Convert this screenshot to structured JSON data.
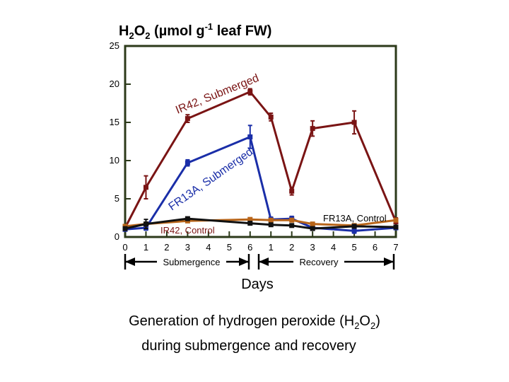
{
  "chart_data": {
    "type": "line",
    "title_main": "H",
    "title_sub2a": "2",
    "title_o": "O",
    "title_sub2b": "2",
    "title_mid": " (",
    "title_mu": "µ",
    "title_rest": "mol g",
    "title_sup": "-1",
    "title_end": " leaf FW)",
    "ylim": [
      0,
      25
    ],
    "y_ticks": [
      "0",
      "5",
      "10",
      "15",
      "20",
      "25"
    ],
    "y_tick_values": [
      0,
      5,
      10,
      15,
      20,
      25
    ],
    "x_ticks": [
      "0",
      "1",
      "2",
      "3",
      "4",
      "5",
      "6",
      "1",
      "2",
      "3",
      "4",
      "5",
      "6",
      "7"
    ],
    "x_tick_positions": [
      0,
      1,
      2,
      3,
      4,
      5,
      6,
      7,
      8,
      9,
      10,
      11,
      12,
      13
    ],
    "xlim": [
      0,
      13
    ],
    "xlabel": "Days",
    "phase_submergence": "Submergence",
    "phase_recovery": "Recovery",
    "series": [
      {
        "label": "IR42, Submerged",
        "color": "#7a1414",
        "x": [
          0,
          1,
          3,
          6,
          7,
          8,
          9,
          11,
          13
        ],
        "y": [
          1.2,
          6.5,
          15.5,
          19,
          15.7,
          6,
          14.2,
          15,
          2
        ],
        "err": [
          0.3,
          1.5,
          0.5,
          0.4,
          0.5,
          0.5,
          1.0,
          1.5,
          0.5
        ]
      },
      {
        "label": "FR13A, Submerged",
        "color": "#1a2ea8",
        "x": [
          0,
          1,
          3,
          6,
          7,
          8,
          9,
          11,
          13
        ],
        "y": [
          1,
          1.2,
          9.7,
          13.1,
          2.3,
          2.4,
          1.2,
          0.8,
          1.2
        ],
        "err": [
          0.2,
          0.3,
          0.4,
          1.5,
          0.3,
          0.3,
          0.2,
          0.3,
          0.2
        ]
      },
      {
        "label": "IR42, Control",
        "color": "#b8651a",
        "x": [
          0,
          1,
          3,
          6,
          7,
          8,
          9,
          11,
          13
        ],
        "y": [
          1.4,
          1.7,
          2.1,
          2.3,
          2.2,
          2.2,
          1.7,
          1.5,
          2.2
        ],
        "err": [
          0.2,
          0.2,
          0.2,
          0.2,
          0.2,
          0.2,
          0.2,
          0.2,
          0.2
        ]
      },
      {
        "label": "FR13A, Control",
        "color": "#111111",
        "x": [
          0,
          1,
          3,
          6,
          7,
          8,
          9,
          11,
          13
        ],
        "y": [
          1.1,
          1.7,
          2.4,
          1.8,
          1.6,
          1.5,
          1.1,
          1.4,
          1.3
        ],
        "err": [
          0.2,
          0.6,
          0.2,
          0.2,
          0.2,
          0.2,
          0.2,
          0.2,
          0.2
        ]
      }
    ],
    "annotations": {
      "ir42_sub": "IR42, Submerged",
      "fr13a_sub": "FR13A, Submerged",
      "fr13a_ctrl": "FR13A, Control",
      "ir42_ctrl": "IR42, Control"
    }
  },
  "caption": {
    "line1": "Generation of hydrogen peroxide (H",
    "line1_sub1": "2",
    "line1_o": "O",
    "line1_sub2": "2",
    "line1_end": ")",
    "line2": "during submergence and recovery"
  }
}
